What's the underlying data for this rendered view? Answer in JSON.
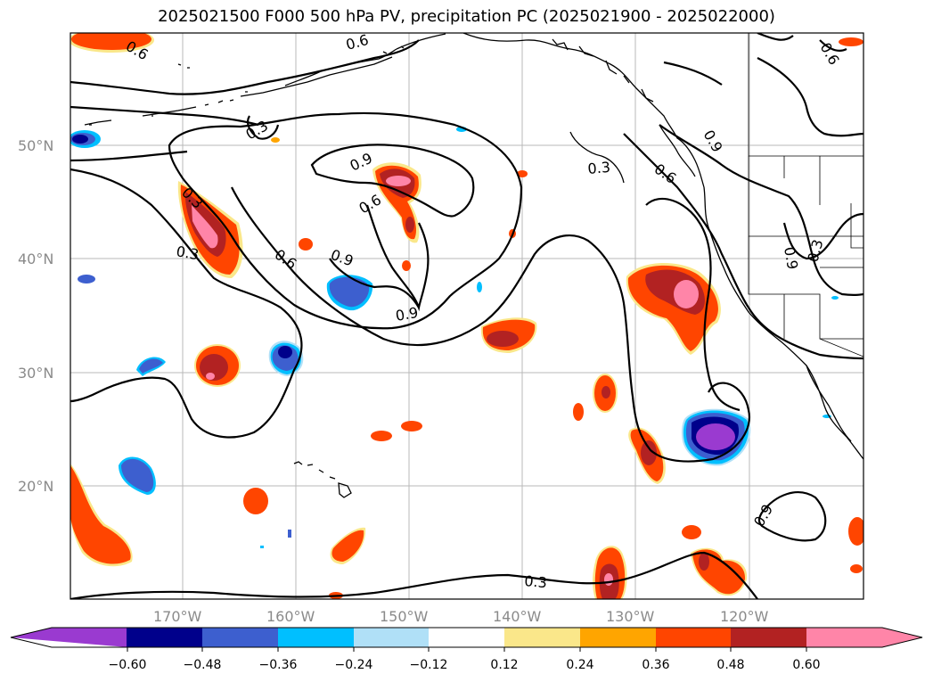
{
  "title": "2025021500 F000 500 hPa PV, precipitation PC (2025021900 - 2025022000)",
  "lat_labels": [
    "50°N",
    "40°N",
    "30°N",
    "20°N"
  ],
  "lon_labels": [
    "170°W",
    "160°W",
    "150°W",
    "140°W",
    "130°W",
    "120°W"
  ],
  "contour_labels": [
    "0.6",
    "0.6",
    "0.3",
    "0.3",
    "0.9",
    "0.6",
    "0.9",
    "0.9",
    "0.3",
    "0.6",
    "0.9",
    "0.6",
    "0.9",
    "0.3",
    "0.6",
    "0.3",
    "0.3",
    "0.9"
  ],
  "colorbar": {
    "ticks": [
      "−0.60",
      "−0.48",
      "−0.36",
      "−0.24",
      "−0.12",
      "0.12",
      "0.24",
      "0.36",
      "0.48",
      "0.60"
    ],
    "colors": [
      "#9a3ad0",
      "#00008b",
      "#3d5fcf",
      "#00bfff",
      "#b0e0f7",
      "#ffffff",
      "#fae78a",
      "#ffa500",
      "#ff4500",
      "#b22222",
      "#ff85a8",
      "#ff85a8"
    ]
  },
  "palette": {
    "neg_outer": "#b0e0f7",
    "neg_1": "#00bfff",
    "neg_2": "#3d5fcf",
    "neg_3": "#00008b",
    "neg_4": "#9a3ad0",
    "pos_outer": "#fae78a",
    "pos_1": "#ffa500",
    "pos_2": "#ff4500",
    "pos_3": "#b22222",
    "pos_4": "#ff85a8"
  }
}
